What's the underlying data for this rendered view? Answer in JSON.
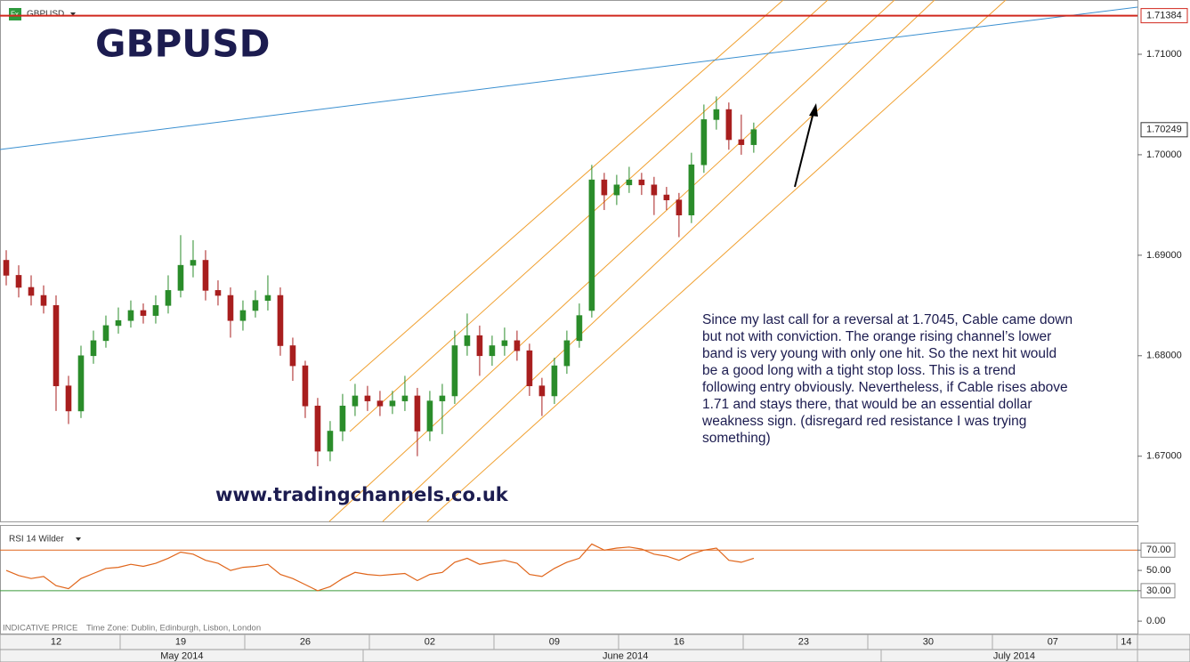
{
  "header": {
    "symbol": "GBPUSD"
  },
  "footer": {
    "source": "INDICATIVE PRICE",
    "time_zone": "Time Zone: Dublin, Edinburgh, Lisbon, London"
  },
  "chart_data": [
    {
      "type": "candlestick",
      "title": "GBPUSD",
      "watermark": "www.tradingchannels.co.uk",
      "annotation": {
        "lines": [
          "Since my last call for a reversal at 1.7045, Cable came down",
          "but not with conviction. The orange rising channel’s lower",
          "band is very young with only one hit. So the next hit would",
          "be a good long with a tight stop loss. This is a trend",
          "following entry obviously. Nevertheless, if Cable rises above",
          "1.71 and stays there, that would be an essential dollar",
          "weakness sign. (disregard red resistance I was trying",
          "something)"
        ]
      },
      "x": [
        0.5,
        1.5,
        2.5,
        3.5,
        4.5,
        5.5,
        6.5,
        7.5,
        8.5,
        9.5,
        10.5,
        11.5,
        12.5,
        13.5,
        14.5,
        15.5,
        16.5,
        17.5,
        18.5,
        19.5,
        20.5,
        21.5,
        22.5,
        23.5,
        24.5,
        25.5,
        26.5,
        27.5,
        28.5,
        29.5,
        30.5,
        31.5,
        32.5,
        33.5,
        34.5,
        35.5,
        36.5,
        37.5,
        38.5,
        39.5,
        40.5,
        41.5,
        42.5,
        43.5,
        44.5,
        45.5,
        46.5,
        47.5,
        48.5,
        49.5,
        50.5,
        51.5,
        52.5,
        53.5,
        54.5,
        55.5,
        56.5,
        57.5,
        58.5,
        59.5,
        60.5
      ],
      "open": [
        1.6895,
        1.688,
        1.6868,
        1.686,
        1.685,
        1.677,
        1.6745,
        1.68,
        1.6815,
        1.683,
        1.6835,
        1.6845,
        1.684,
        1.685,
        1.6865,
        1.689,
        1.6895,
        1.6865,
        1.686,
        1.6835,
        1.6845,
        1.6855,
        1.686,
        1.681,
        1.679,
        1.675,
        1.6705,
        1.6725,
        1.675,
        1.676,
        1.6755,
        1.675,
        1.6755,
        1.676,
        1.6725,
        1.6755,
        1.676,
        1.681,
        1.682,
        1.68,
        1.681,
        1.6815,
        1.6805,
        1.677,
        1.676,
        1.679,
        1.6815,
        1.6845,
        1.6975,
        1.696,
        1.697,
        1.6975,
        1.697,
        1.696,
        1.6955,
        1.694,
        1.699,
        1.7035,
        1.7045,
        1.7015,
        1.701
      ],
      "high": [
        1.6905,
        1.689,
        1.688,
        1.687,
        1.686,
        1.678,
        1.681,
        1.6825,
        1.684,
        1.6848,
        1.6855,
        1.6852,
        1.686,
        1.688,
        1.692,
        1.6915,
        1.6905,
        1.6875,
        1.6868,
        1.6855,
        1.6865,
        1.688,
        1.6868,
        1.6818,
        1.6795,
        1.6758,
        1.6735,
        1.6762,
        1.6772,
        1.677,
        1.6765,
        1.6765,
        1.678,
        1.6768,
        1.6765,
        1.6772,
        1.6825,
        1.6842,
        1.683,
        1.682,
        1.6828,
        1.6825,
        1.6812,
        1.6778,
        1.6798,
        1.6825,
        1.6852,
        1.699,
        1.6982,
        1.698,
        1.6988,
        1.6982,
        1.6978,
        1.6968,
        1.6962,
        1.7002,
        1.705,
        1.7058,
        1.7052,
        1.704,
        1.7032
      ],
      "low": [
        1.687,
        1.6858,
        1.685,
        1.6842,
        1.6745,
        1.6732,
        1.6738,
        1.6792,
        1.6808,
        1.6822,
        1.6828,
        1.6832,
        1.6832,
        1.6842,
        1.6858,
        1.6878,
        1.6855,
        1.685,
        1.6818,
        1.6825,
        1.6838,
        1.6845,
        1.68,
        1.6775,
        1.6738,
        1.669,
        1.6695,
        1.6715,
        1.674,
        1.6745,
        1.674,
        1.6742,
        1.6745,
        1.67,
        1.6715,
        1.6722,
        1.6752,
        1.68,
        1.678,
        1.679,
        1.68,
        1.6795,
        1.676,
        1.674,
        1.6752,
        1.6782,
        1.6808,
        1.6838,
        1.6945,
        1.695,
        1.6962,
        1.696,
        1.694,
        1.6945,
        1.6918,
        1.6932,
        1.6982,
        1.7025,
        1.7005,
        1.7,
        1.7002
      ],
      "close": [
        1.688,
        1.6868,
        1.686,
        1.685,
        1.677,
        1.6745,
        1.68,
        1.6815,
        1.683,
        1.6835,
        1.6845,
        1.684,
        1.685,
        1.6865,
        1.689,
        1.6895,
        1.6865,
        1.686,
        1.6835,
        1.6845,
        1.6855,
        1.686,
        1.681,
        1.679,
        1.675,
        1.6705,
        1.6725,
        1.675,
        1.676,
        1.6755,
        1.675,
        1.6755,
        1.676,
        1.6725,
        1.6755,
        1.676,
        1.681,
        1.682,
        1.68,
        1.681,
        1.6815,
        1.6805,
        1.677,
        1.676,
        1.679,
        1.6815,
        1.684,
        1.6975,
        1.696,
        1.697,
        1.6975,
        1.697,
        1.696,
        1.6955,
        1.694,
        1.699,
        1.7035,
        1.7045,
        1.7015,
        1.701,
        1.7025
      ],
      "up_color": "#2a8c2a",
      "down_color": "#a81e1e",
      "xlim": [
        0,
        91.3
      ],
      "ylim": [
        1.6636,
        1.7154
      ],
      "yticks": [
        {
          "value": 1.67,
          "label": "1.67000"
        },
        {
          "value": 1.68,
          "label": "1.68000"
        },
        {
          "value": 1.69,
          "label": "1.69000"
        },
        {
          "value": 1.7,
          "label": "1.70000"
        },
        {
          "value": 1.71,
          "label": "1.71000"
        }
      ],
      "price_lines": [
        {
          "value": 1.71384,
          "color": "#d0271d",
          "line": true
        },
        {
          "value": 1.70249,
          "color": "#333333",
          "line": false
        }
      ],
      "xticks": [
        {
          "value": 4.5,
          "label": "12"
        },
        {
          "value": 14.5,
          "label": "19"
        },
        {
          "value": 24.5,
          "label": "26"
        },
        {
          "value": 34.5,
          "label": "02"
        },
        {
          "value": 44.5,
          "label": "09"
        },
        {
          "value": 54.5,
          "label": "16"
        },
        {
          "value": 64.5,
          "label": "23"
        },
        {
          "value": 74.5,
          "label": "30"
        },
        {
          "value": 84.5,
          "label": "07"
        },
        {
          "value": 90.4,
          "label": "14"
        }
      ],
      "month_ticks": [
        {
          "value": 14.6,
          "label": "May 2014"
        },
        {
          "value": 50.2,
          "label": "June 2014"
        },
        {
          "value": 81.4,
          "label": "July 2014"
        }
      ]
    },
    {
      "type": "line",
      "title": "RSI 14 Wilder",
      "x": [
        0.5,
        1.5,
        2.5,
        3.5,
        4.5,
        5.5,
        6.5,
        7.5,
        8.5,
        9.5,
        10.5,
        11.5,
        12.5,
        13.5,
        14.5,
        15.5,
        16.5,
        17.5,
        18.5,
        19.5,
        20.5,
        21.5,
        22.5,
        23.5,
        24.5,
        25.5,
        26.5,
        27.5,
        28.5,
        29.5,
        30.5,
        31.5,
        32.5,
        33.5,
        34.5,
        35.5,
        36.5,
        37.5,
        38.5,
        39.5,
        40.5,
        41.5,
        42.5,
        43.5,
        44.5,
        45.5,
        46.5,
        47.5,
        48.5,
        49.5,
        50.5,
        51.5,
        52.5,
        53.5,
        54.5,
        55.5,
        56.5,
        57.5,
        58.5,
        59.5,
        60.5
      ],
      "values": [
        50,
        45,
        42,
        44,
        35,
        32,
        42,
        47,
        52,
        53,
        56,
        54,
        57,
        62,
        68,
        66,
        60,
        57,
        50,
        53,
        54,
        56,
        46,
        42,
        36,
        30,
        34,
        42,
        48,
        46,
        45,
        46,
        47,
        40,
        46,
        48,
        58,
        62,
        56,
        58,
        60,
        57,
        46,
        44,
        52,
        58,
        62,
        76,
        70,
        72,
        73,
        71,
        66,
        64,
        60,
        66,
        70,
        72,
        60,
        58,
        62
      ],
      "color": "#e0651a",
      "xlim": [
        0,
        91.3
      ],
      "ylim": [
        -12.2,
        93.9
      ],
      "yticks": [
        {
          "value": 0,
          "label": "0.00"
        },
        {
          "value": 30,
          "label": "30.00"
        },
        {
          "value": 50,
          "label": "50.00"
        },
        {
          "value": 70,
          "label": "70.00"
        }
      ],
      "levels": [
        {
          "value": 70,
          "color": "#e0651a"
        },
        {
          "value": 30,
          "color": "#3a9a3a"
        }
      ]
    }
  ]
}
